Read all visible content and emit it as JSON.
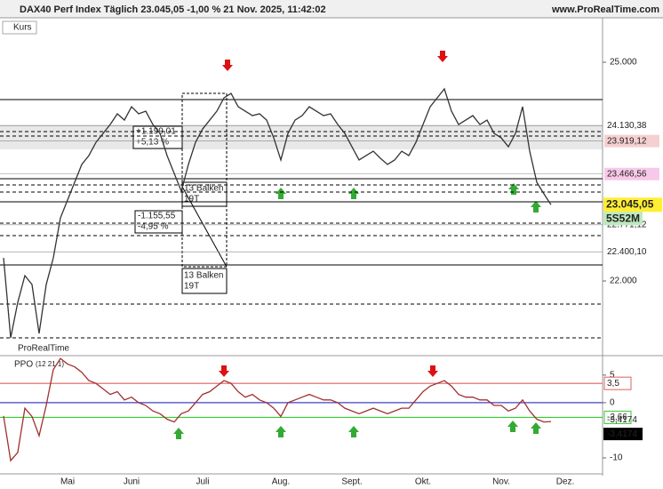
{
  "header": {
    "title": "DAX40 Perf Index Täglich 23.045,05 -1,00 % 21 Nov. 2025, 11:42:02",
    "site": "www.ProRealTime.com"
  },
  "chart_data": [
    {
      "type": "line",
      "label": "Kurs",
      "watermark": "ProRealTime",
      "categories": [
        null,
        null,
        null,
        null,
        null,
        null,
        null,
        null,
        null,
        "Mai",
        null,
        null,
        null,
        null,
        null,
        null,
        null,
        null,
        "Juni",
        null,
        null,
        null,
        null,
        null,
        null,
        null,
        null,
        null,
        "Juli",
        null,
        null,
        null,
        null,
        null,
        null,
        null,
        null,
        null,
        null,
        "Aug.",
        null,
        null,
        null,
        null,
        null,
        null,
        null,
        null,
        null,
        "Sept.",
        null,
        null,
        null,
        null,
        null,
        null,
        null,
        null,
        null,
        "Okt.",
        null,
        null,
        null,
        null,
        null,
        null,
        null,
        null,
        null,
        null,
        "Nov.",
        null,
        null,
        null,
        null,
        null,
        null,
        null,
        null,
        "Dez.",
        null,
        null,
        null,
        null,
        null
      ],
      "series": [
        {
          "color": "#333333",
          "values": [
            22317,
            21220,
            21707,
            22073,
            21951,
            21280,
            21951,
            22317,
            22866,
            23110,
            23354,
            23598,
            23720,
            23902,
            24024,
            24146,
            24293,
            24207,
            24390,
            24293,
            24329,
            24146,
            24024,
            23720,
            23476,
            23232,
            23598,
            23902,
            24085,
            24207,
            24329,
            24512,
            24573,
            24390,
            24329,
            24268,
            24293,
            24207,
            23963,
            23659,
            24024,
            24207,
            24268,
            24390,
            24329,
            24268,
            24293,
            24146,
            24024,
            23841,
            23659,
            23720,
            23780,
            23683,
            23598,
            23659,
            23780,
            23720,
            23902,
            24146,
            24390,
            24512,
            24634,
            24329,
            24146,
            24207,
            24268,
            24146,
            24207,
            24024,
            23963,
            23841,
            24024,
            24390,
            23780,
            23354,
            23195,
            23045,
            null,
            null,
            null,
            null,
            null,
            null,
            null
          ]
        }
      ],
      "ylim": [
        21000,
        25610
      ],
      "yticks": [
        {
          "value": 25000,
          "label": "25.000"
        },
        {
          "value": 22000,
          "label": "22.000"
        }
      ],
      "h_lines": [
        {
          "value": 24488,
          "dash": false
        },
        {
          "value": 23402,
          "dash": false
        },
        {
          "value": 23085,
          "dash": false
        },
        {
          "value": 22220,
          "dash": false
        },
        {
          "value": 24049,
          "dash": true
        },
        {
          "value": 23988,
          "dash": true
        },
        {
          "value": 23317,
          "dash": true
        },
        {
          "value": 23220,
          "dash": true
        },
        {
          "value": 22793,
          "dash": true
        },
        {
          "value": 22622,
          "dash": true
        },
        {
          "value": 21683,
          "dash": true
        },
        {
          "value": 21220,
          "dash": true
        }
      ],
      "levels": [
        {
          "value": 24130.38,
          "label": "24.130,38",
          "color": "#ffffff"
        },
        {
          "value": 23919.12,
          "label": "23.919,12",
          "color": "#f6d0d0"
        },
        {
          "value": 23466.56,
          "label": "23.466,56",
          "color": "#f8c8e8"
        },
        {
          "value": 22771.12,
          "label": "22.771,12",
          "color": "#ffffff"
        },
        {
          "value": 22400.1,
          "label": "22.400,10",
          "color": "#ffffff"
        }
      ],
      "last_price": {
        "value": 23045.05,
        "label": "23.045,05"
      },
      "timer": "5S52M",
      "annotations": [
        "+1.199,01",
        "+5,13 %",
        "-1.155,55",
        "-4,95 %",
        "13 Balken",
        "19T",
        "13 Balken",
        "19T"
      ]
    },
    {
      "type": "line",
      "label": "PPO",
      "params": "(12 21 1)",
      "series": [
        {
          "color": "#a03030",
          "values": [
            -2.4,
            -10.5,
            -9,
            -1,
            -2.5,
            -6,
            -0.5,
            6,
            8,
            7,
            6.5,
            5.5,
            4,
            3.5,
            2.5,
            1.5,
            2,
            0.5,
            1,
            0,
            -0.5,
            -1.5,
            -2,
            -3,
            -3.5,
            -2,
            -1.5,
            0,
            1.5,
            2,
            3,
            4,
            3.5,
            2,
            1,
            1.5,
            0.5,
            0,
            -1,
            -2.5,
            0,
            0.5,
            1,
            1.5,
            1,
            0.5,
            0.5,
            0,
            -1,
            -1.5,
            -2,
            -1.5,
            -1,
            -1.5,
            -2,
            -1.5,
            -1,
            -1,
            0.5,
            2,
            3,
            3.5,
            4,
            3,
            1.5,
            1,
            1,
            0.5,
            0.5,
            -0.5,
            -0.5,
            -1.5,
            -1,
            0.5,
            -1.5,
            -3,
            -3.5,
            -3.4174,
            null,
            null,
            null,
            null,
            null,
            null,
            null
          ]
        }
      ],
      "ylim": [
        -12.9,
        8.2
      ],
      "yticks": [
        5,
        0,
        -10
      ],
      "levels": [
        {
          "value": 3.5,
          "label": "3,5",
          "color": "#e06060"
        },
        {
          "value": 0,
          "color": "#4040c0"
        },
        {
          "value": -2.66,
          "label": "-2,66",
          "color": "#33cc33"
        }
      ],
      "last_value": {
        "value": -3.4174,
        "label": "-3,4174"
      }
    }
  ]
}
